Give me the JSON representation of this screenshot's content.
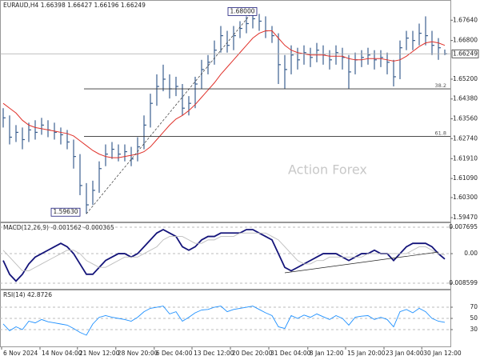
{
  "chart_data": [
    {
      "type": "ohlc",
      "title": "EURAUD,H4  1.66398 1.66427 1.66196 1.66249",
      "watermark": "Action Forex",
      "color": "#3b5f8f",
      "xlim": [
        -0.5,
        69.5
      ],
      "ylim": [
        1.5934,
        1.6841
      ],
      "yticks": [
        {
          "value": 1.6764,
          "label": "1.67640"
        },
        {
          "value": 1.668,
          "label": "1.66800"
        },
        {
          "value": 1.652,
          "label": "1.65200"
        },
        {
          "value": 1.6438,
          "label": "1.64380"
        },
        {
          "value": 1.6356,
          "label": "1.63560"
        },
        {
          "value": 1.6274,
          "label": "1.62740"
        },
        {
          "value": 1.6191,
          "label": "1.61910"
        },
        {
          "value": 1.6109,
          "label": "1.61090"
        },
        {
          "value": 1.603,
          "label": "1.60300"
        },
        {
          "value": 1.5947,
          "label": "1.59470"
        }
      ],
      "high": [
        1.64,
        1.637,
        1.633,
        1.632,
        1.634,
        1.635,
        1.636,
        1.635,
        1.634,
        1.632,
        1.631,
        1.627,
        1.621,
        1.609,
        1.61,
        1.618,
        1.625,
        1.626,
        1.625,
        1.625,
        1.624,
        1.628,
        1.637,
        1.646,
        1.654,
        1.658,
        1.654,
        1.653,
        1.65,
        1.645,
        1.653,
        1.66,
        1.662,
        1.668,
        1.674,
        1.672,
        1.674,
        1.676,
        1.678,
        1.68,
        1.679,
        1.678,
        1.674,
        1.671,
        1.662,
        1.666,
        1.665,
        1.666,
        1.665,
        1.667,
        1.666,
        1.664,
        1.666,
        1.665,
        1.662,
        1.663,
        1.664,
        1.665,
        1.664,
        1.664,
        1.663,
        1.66,
        1.668,
        1.672,
        1.672,
        1.675,
        1.678,
        1.672,
        1.669,
        1.66427
      ],
      "low": [
        1.632,
        1.625,
        1.626,
        1.623,
        1.626,
        1.627,
        1.629,
        1.628,
        1.627,
        1.625,
        1.623,
        1.615,
        1.604,
        1.5963,
        1.6,
        1.605,
        1.616,
        1.619,
        1.618,
        1.618,
        1.616,
        1.618,
        1.623,
        1.632,
        1.641,
        1.647,
        1.644,
        1.645,
        1.637,
        1.637,
        1.64,
        1.648,
        1.654,
        1.658,
        1.663,
        1.663,
        1.664,
        1.669,
        1.671,
        1.673,
        1.672,
        1.669,
        1.667,
        1.65,
        1.648,
        1.654,
        1.656,
        1.658,
        1.657,
        1.659,
        1.658,
        1.656,
        1.658,
        1.656,
        1.648,
        1.654,
        1.657,
        1.658,
        1.656,
        1.657,
        1.654,
        1.649,
        1.652,
        1.664,
        1.664,
        1.666,
        1.666,
        1.662,
        1.66,
        1.66196
      ],
      "close": [
        1.636,
        1.628,
        1.63,
        1.627,
        1.631,
        1.63,
        1.633,
        1.631,
        1.63,
        1.629,
        1.626,
        1.62,
        1.608,
        1.6,
        1.606,
        1.615,
        1.621,
        1.623,
        1.621,
        1.622,
        1.619,
        1.624,
        1.633,
        1.642,
        1.649,
        1.652,
        1.648,
        1.649,
        1.64,
        1.642,
        1.65,
        1.656,
        1.659,
        1.664,
        1.67,
        1.666,
        1.67,
        1.673,
        1.675,
        1.677,
        1.676,
        1.672,
        1.67,
        1.658,
        1.656,
        1.662,
        1.66,
        1.663,
        1.661,
        1.664,
        1.662,
        1.66,
        1.663,
        1.661,
        1.655,
        1.66,
        1.661,
        1.662,
        1.66,
        1.661,
        1.659,
        1.653,
        1.665,
        1.669,
        1.668,
        1.671,
        1.67,
        1.666,
        1.665,
        1.66249
      ],
      "ma": {
        "color": "#e0312a",
        "values": [
          1.642,
          1.64,
          1.638,
          1.635,
          1.633,
          1.632,
          1.6315,
          1.631,
          1.6305,
          1.63,
          1.6295,
          1.6285,
          1.6265,
          1.6245,
          1.6225,
          1.621,
          1.62,
          1.6195,
          1.6195,
          1.62,
          1.6205,
          1.621,
          1.622,
          1.624,
          1.627,
          1.63,
          1.633,
          1.6355,
          1.637,
          1.639,
          1.6415,
          1.6445,
          1.6475,
          1.6505,
          1.654,
          1.657,
          1.66,
          1.663,
          1.666,
          1.669,
          1.671,
          1.672,
          1.672,
          1.669,
          1.666,
          1.664,
          1.663,
          1.6625,
          1.662,
          1.662,
          1.662,
          1.6615,
          1.6615,
          1.6615,
          1.6605,
          1.66,
          1.66,
          1.6605,
          1.6605,
          1.6605,
          1.66,
          1.6595,
          1.66,
          1.6615,
          1.6635,
          1.6655,
          1.667,
          1.6675,
          1.667,
          1.666
        ]
      },
      "annotations": [
        {
          "value": 1.68,
          "label": "1.68000"
        },
        {
          "value": 1.5963,
          "label": "1.59630"
        }
      ],
      "fib_levels": [
        {
          "value": 1.648,
          "label": "38.2"
        },
        {
          "value": 1.6283,
          "label": "61.8"
        }
      ]
    },
    {
      "type": "line",
      "title": "MACD(12,26,9) -0.001562 -0.000365",
      "xlim": [
        -0.5,
        69.5
      ],
      "ylim": [
        -0.01,
        0.00886
      ],
      "yticks": [
        0.007695,
        {
          "value": 0,
          "label": "0.00"
        },
        -0.008599
      ],
      "series": [
        {
          "color": "#14147a",
          "values": [
            -0.002,
            -0.006,
            -0.008,
            -0.006,
            -0.003,
            -0.001,
            0.0,
            0.001,
            0.002,
            0.003,
            0.002,
            0.0,
            -0.003,
            -0.006,
            -0.006,
            -0.004,
            -0.002,
            -0.001,
            0.0,
            0.0,
            -0.001,
            0.0,
            0.002,
            0.004,
            0.006,
            0.007,
            0.006,
            0.005,
            0.002,
            0.001,
            0.002,
            0.004,
            0.005,
            0.005,
            0.006,
            0.006,
            0.006,
            0.006,
            0.007,
            0.007,
            0.006,
            0.005,
            0.004,
            0.0,
            -0.004,
            -0.005,
            -0.004,
            -0.003,
            -0.002,
            -0.001,
            0.0,
            0.0,
            0.0,
            -0.001,
            -0.002,
            -0.001,
            0.0,
            0.0,
            0.001,
            0.0,
            0.0,
            -0.002,
            0.0,
            0.002,
            0.003,
            0.003,
            0.003,
            0.002,
            0.0,
            -0.001562
          ]
        },
        {
          "color": "#bdbdbd",
          "values": [
            0.001,
            -0.001,
            -0.003,
            -0.005,
            -0.005,
            -0.004,
            -0.003,
            -0.002,
            -0.001,
            0.0,
            0.001,
            0.001,
            0.0,
            -0.002,
            -0.003,
            -0.004,
            -0.004,
            -0.003,
            -0.002,
            -0.001,
            -0.001,
            -0.001,
            0.0,
            0.001,
            0.002,
            0.004,
            0.005,
            0.005,
            0.005,
            0.004,
            0.003,
            0.003,
            0.004,
            0.004,
            0.005,
            0.005,
            0.005,
            0.006,
            0.006,
            0.006,
            0.006,
            0.006,
            0.005,
            0.004,
            0.002,
            0.0,
            -0.002,
            -0.003,
            -0.003,
            -0.002,
            -0.002,
            -0.001,
            -0.001,
            -0.001,
            -0.001,
            -0.001,
            -0.001,
            0.0,
            0.0,
            0.0,
            0.0,
            0.0,
            0.0,
            0.0,
            0.001,
            0.002,
            0.002,
            0.001,
            0.0,
            -0.000365
          ]
        }
      ]
    },
    {
      "type": "line",
      "title": "RSI(14) 42.8726",
      "xlim": [
        -0.5,
        69.5
      ],
      "ylim": [
        1.4,
        98.6
      ],
      "yticks": [
        70,
        50,
        30
      ],
      "series": [
        {
          "color": "#1e90ff",
          "values": [
            40,
            28,
            35,
            30,
            45,
            42,
            48,
            44,
            42,
            40,
            38,
            32,
            25,
            20,
            40,
            52,
            55,
            52,
            50,
            48,
            45,
            52,
            62,
            68,
            70,
            72,
            58,
            62,
            45,
            52,
            60,
            65,
            66,
            70,
            72,
            62,
            66,
            68,
            70,
            72,
            66,
            60,
            55,
            35,
            32,
            55,
            50,
            56,
            52,
            58,
            53,
            48,
            55,
            50,
            38,
            52,
            54,
            55,
            48,
            52,
            48,
            35,
            62,
            66,
            60,
            68,
            62,
            50,
            45,
            42.8726
          ]
        }
      ],
      "xticks": [
        {
          "value": -0.25,
          "label": "6 Nov 2024"
        },
        {
          "value": 5.75,
          "label": "14 Nov 04:00"
        },
        {
          "value": 11.6,
          "label": "21 Nov 12:00"
        },
        {
          "value": 17.6,
          "label": "28 Nov 20:00"
        },
        {
          "value": 23.6,
          "label": "6 Dec 04:00"
        },
        {
          "value": 29.5,
          "label": "13 Dec 12:00"
        },
        {
          "value": 35.5,
          "label": "20 Dec 20:00"
        },
        {
          "value": 41.5,
          "label": "31 Dec 04:00"
        },
        {
          "value": 47.6,
          "label": "8 Jan 12:00"
        },
        {
          "value": 53.5,
          "label": "15 Jan 20:00"
        },
        {
          "value": 59.5,
          "label": "23 Jan 04:00"
        },
        {
          "value": 65.4,
          "label": "30 Jan 12:00"
        }
      ]
    }
  ]
}
